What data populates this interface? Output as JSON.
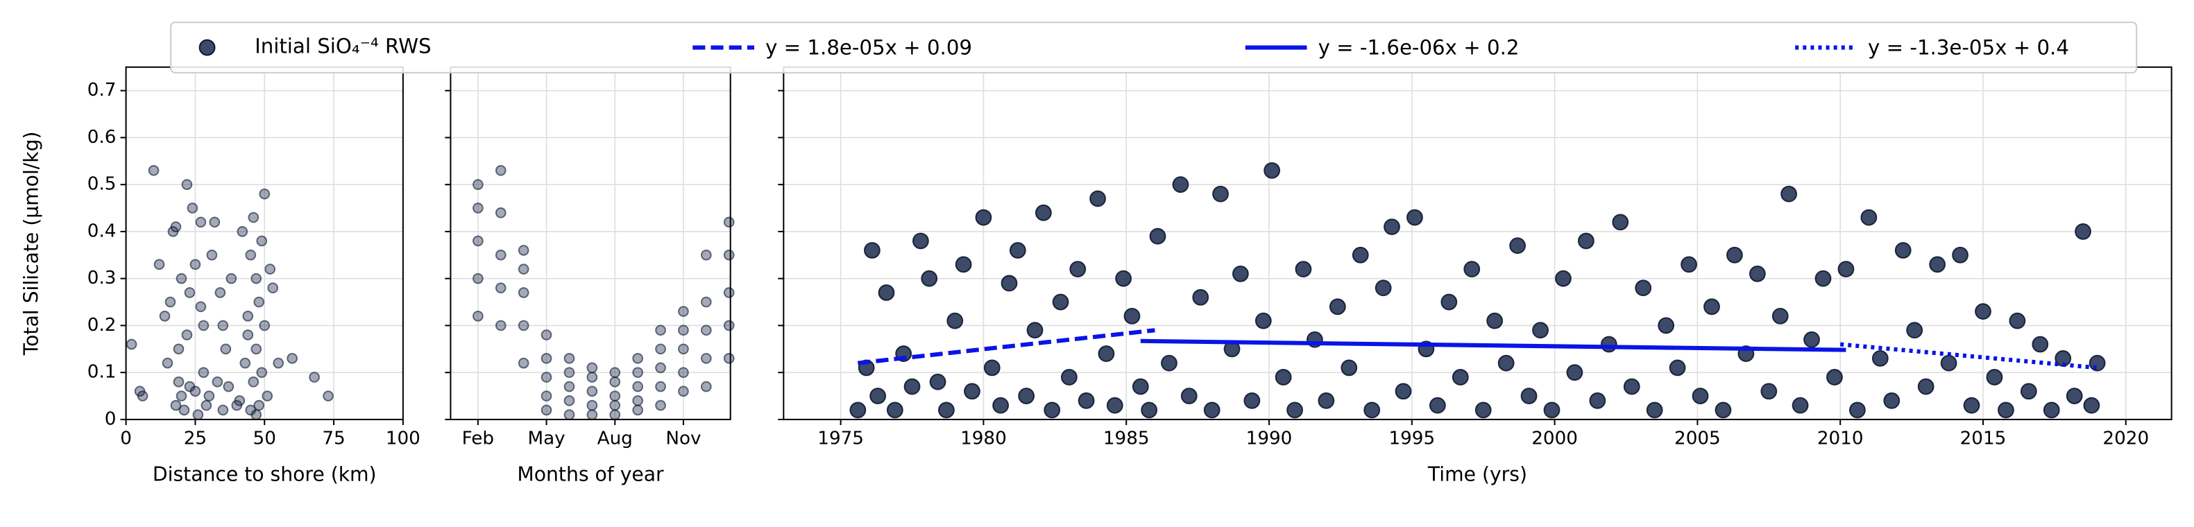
{
  "chart_data": [
    {
      "type": "scatter",
      "x_label": "Distance to shore (km)",
      "y_label": "Total Silicate (µmol/kg)",
      "xlim": [
        0,
        100
      ],
      "xticks": [
        0,
        25,
        50,
        75,
        100
      ],
      "ylim": [
        0,
        0.75
      ],
      "yticks": [
        0,
        0.1,
        0.2,
        0.3,
        0.4,
        0.5,
        0.6,
        0.7
      ],
      "grid": true,
      "series": [
        {
          "color": "#1b2a4e",
          "x": [
            2,
            5,
            6,
            10,
            12,
            14,
            15,
            16,
            17,
            18,
            18,
            19,
            20,
            20,
            21,
            22,
            22,
            23,
            24,
            25,
            25,
            26,
            27,
            28,
            28,
            29,
            30,
            31,
            32,
            33,
            34,
            35,
            36,
            37,
            38,
            40,
            41,
            42,
            43,
            44,
            45,
            45,
            46,
            46,
            47,
            47,
            48,
            48,
            49,
            49,
            50,
            50,
            51,
            52,
            53,
            55,
            60,
            68,
            73,
            19,
            23,
            44,
            47,
            35,
            27
          ],
          "values": [
            0.16,
            0.06,
            0.05,
            0.53,
            0.33,
            0.22,
            0.12,
            0.25,
            0.4,
            0.03,
            0.41,
            0.08,
            0.3,
            0.05,
            0.02,
            0.5,
            0.18,
            0.27,
            0.45,
            0.06,
            0.33,
            0.01,
            0.42,
            0.1,
            0.2,
            0.03,
            0.05,
            0.35,
            0.42,
            0.08,
            0.27,
            0.02,
            0.15,
            0.07,
            0.3,
            0.03,
            0.04,
            0.4,
            0.12,
            0.22,
            0.35,
            0.02,
            0.43,
            0.08,
            0.3,
            0.15,
            0.03,
            0.25,
            0.38,
            0.1,
            0.2,
            0.48,
            0.05,
            0.32,
            0.28,
            0.12,
            0.13,
            0.09,
            0.05,
            0.15,
            0.07,
            0.18,
            0.01,
            0.2,
            0.24
          ]
        }
      ]
    },
    {
      "type": "scatter",
      "x_label": "Months of year",
      "xlim": [
        0.8,
        13.06
      ],
      "xticks": [
        {
          "value": 2,
          "label": "Feb"
        },
        {
          "value": 5,
          "label": "May"
        },
        {
          "value": 8,
          "label": "Aug"
        },
        {
          "value": 11,
          "label": "Nov"
        }
      ],
      "ylim": [
        0,
        0.75
      ],
      "sharey": true,
      "grid": true,
      "series": [
        {
          "color": "#1b2a4e",
          "x": [
            2,
            2,
            2,
            2,
            2,
            3,
            3,
            3,
            3,
            3,
            4,
            4,
            4,
            4,
            4,
            5,
            5,
            5,
            5,
            5,
            6,
            6,
            6,
            6,
            6,
            7,
            7,
            7,
            7,
            7,
            8,
            8,
            8,
            8,
            8,
            9,
            9,
            9,
            9,
            9,
            10,
            10,
            10,
            10,
            10,
            11,
            11,
            11,
            11,
            11,
            12,
            12,
            12,
            12,
            12,
            13,
            13,
            13,
            13,
            13
          ],
          "values": [
            0.22,
            0.3,
            0.38,
            0.45,
            0.5,
            0.2,
            0.28,
            0.35,
            0.44,
            0.53,
            0.12,
            0.2,
            0.27,
            0.32,
            0.36,
            0.02,
            0.05,
            0.09,
            0.13,
            0.18,
            0.01,
            0.04,
            0.07,
            0.1,
            0.13,
            0.01,
            0.03,
            0.06,
            0.09,
            0.11,
            0.01,
            0.03,
            0.05,
            0.08,
            0.1,
            0.02,
            0.04,
            0.07,
            0.1,
            0.13,
            0.03,
            0.07,
            0.11,
            0.15,
            0.19,
            0.06,
            0.1,
            0.15,
            0.19,
            0.23,
            0.07,
            0.13,
            0.19,
            0.25,
            0.35,
            0.13,
            0.2,
            0.27,
            0.35,
            0.42
          ]
        }
      ]
    },
    {
      "type": "scatter",
      "x_label": "Time (yrs)",
      "xlim": [
        1973,
        2021.6
      ],
      "xticks": [
        1975,
        1980,
        1985,
        1990,
        1995,
        2000,
        2005,
        2010,
        2015,
        2020
      ],
      "ylim": [
        0,
        0.75
      ],
      "sharey": true,
      "grid": true,
      "legend": "upper center",
      "series": [
        {
          "name": "Initial SiO₄⁻⁴ RWS",
          "color": "#1b2a4e",
          "x": [
            1975.6,
            1975.9,
            1976.1,
            1976.3,
            1976.6,
            1976.9,
            1977.2,
            1977.5,
            1977.8,
            1978.1,
            1978.4,
            1978.7,
            1979.0,
            1979.3,
            1979.6,
            1980.0,
            1980.3,
            1980.6,
            1980.9,
            1981.2,
            1981.5,
            1981.8,
            1982.1,
            1982.4,
            1982.7,
            1983.0,
            1983.3,
            1983.6,
            1984.0,
            1984.3,
            1984.6,
            1984.9,
            1985.2,
            1985.5,
            1985.8,
            1986.1,
            1986.5,
            1986.9,
            1987.2,
            1987.6,
            1988.0,
            1988.3,
            1988.7,
            1989.0,
            1989.4,
            1989.8,
            1990.1,
            1990.5,
            1990.9,
            1991.2,
            1991.6,
            1992.0,
            1992.4,
            1992.8,
            1993.2,
            1993.6,
            1994.0,
            1994.3,
            1994.7,
            1995.1,
            1995.5,
            1995.9,
            1996.3,
            1996.7,
            1997.1,
            1997.5,
            1997.9,
            1998.3,
            1998.7,
            1999.1,
            1999.5,
            1999.9,
            2000.3,
            2000.7,
            2001.1,
            2001.5,
            2001.9,
            2002.3,
            2002.7,
            2003.1,
            2003.5,
            2003.9,
            2004.3,
            2004.7,
            2005.1,
            2005.5,
            2005.9,
            2006.3,
            2006.7,
            2007.1,
            2007.5,
            2007.9,
            2008.2,
            2008.6,
            2009.0,
            2009.4,
            2009.8,
            2010.2,
            2010.6,
            2011.0,
            2011.4,
            2011.8,
            2012.2,
            2012.6,
            2013.0,
            2013.4,
            2013.8,
            2014.2,
            2014.6,
            2015.0,
            2015.4,
            2015.8,
            2016.2,
            2016.6,
            2017.0,
            2017.4,
            2017.8,
            2018.2,
            2018.5,
            2018.8,
            2019.0
          ],
          "values": [
            0.02,
            0.11,
            0.36,
            0.05,
            0.27,
            0.02,
            0.14,
            0.07,
            0.38,
            0.3,
            0.08,
            0.02,
            0.21,
            0.33,
            0.06,
            0.43,
            0.11,
            0.03,
            0.29,
            0.36,
            0.05,
            0.19,
            0.44,
            0.02,
            0.25,
            0.09,
            0.32,
            0.04,
            0.47,
            0.14,
            0.03,
            0.3,
            0.22,
            0.07,
            0.02,
            0.39,
            0.12,
            0.5,
            0.05,
            0.26,
            0.02,
            0.48,
            0.15,
            0.31,
            0.04,
            0.21,
            0.53,
            0.09,
            0.02,
            0.32,
            0.17,
            0.04,
            0.24,
            0.11,
            0.35,
            0.02,
            0.28,
            0.41,
            0.06,
            0.43,
            0.15,
            0.03,
            0.25,
            0.09,
            0.32,
            0.02,
            0.21,
            0.12,
            0.37,
            0.05,
            0.19,
            0.02,
            0.3,
            0.1,
            0.38,
            0.04,
            0.16,
            0.42,
            0.07,
            0.28,
            0.02,
            0.2,
            0.11,
            0.33,
            0.05,
            0.24,
            0.02,
            0.35,
            0.14,
            0.31,
            0.06,
            0.22,
            0.48,
            0.03,
            0.17,
            0.3,
            0.09,
            0.32,
            0.02,
            0.43,
            0.13,
            0.04,
            0.36,
            0.19,
            0.07,
            0.33,
            0.12,
            0.35,
            0.03,
            0.23,
            0.09,
            0.02,
            0.21,
            0.06,
            0.16,
            0.02,
            0.13,
            0.05,
            0.4,
            0.03,
            0.12
          ]
        },
        {
          "name": "y = 1.8e-05x + 0.09",
          "type": "line",
          "style": "dashed",
          "color": "#0a14e6",
          "x": [
            1975.6,
            1986.0
          ],
          "values": [
            0.12,
            0.19
          ]
        },
        {
          "name": "y = -1.6e-06x + 0.2",
          "type": "line",
          "style": "solid",
          "color": "#0a14e6",
          "x": [
            1985.5,
            2010.2
          ],
          "values": [
            0.167,
            0.148
          ]
        },
        {
          "name": "y = -1.3e-05x + 0.4",
          "type": "line",
          "style": "dotted",
          "color": "#0a14e6",
          "x": [
            2010.0,
            2019.0
          ],
          "values": [
            0.16,
            0.11
          ]
        }
      ]
    }
  ]
}
